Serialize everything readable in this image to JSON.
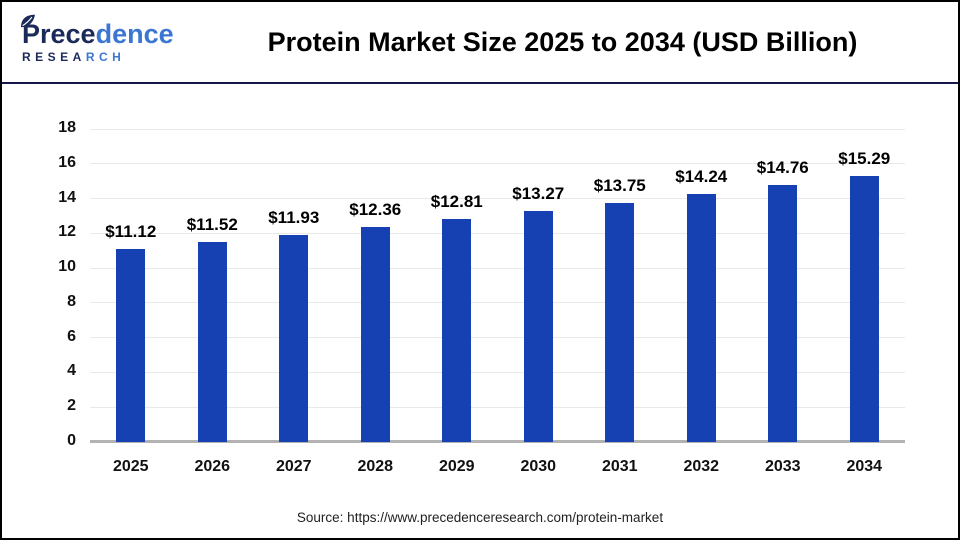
{
  "header": {
    "logo": {
      "name_dark": "Prece",
      "name_light": "dence",
      "sub_dark": "RESEA",
      "sub_light": "RCH"
    },
    "title": "Protein Market Size 2025 to 2034 (USD Billion)"
  },
  "chart_data": {
    "type": "bar",
    "title": "Protein Market Size 2025 to 2034 (USD Billion)",
    "categories": [
      "2025",
      "2026",
      "2027",
      "2028",
      "2029",
      "2030",
      "2031",
      "2032",
      "2033",
      "2034"
    ],
    "values": [
      11.12,
      11.52,
      11.93,
      12.36,
      12.81,
      13.27,
      13.75,
      14.24,
      14.76,
      15.29
    ],
    "value_labels": [
      "$11.12",
      "$11.52",
      "$11.93",
      "$12.36",
      "$12.81",
      "$13.27",
      "$13.75",
      "$14.24",
      "$14.76",
      "$15.29"
    ],
    "unit": "USD Billion",
    "xlabel": "",
    "ylabel": "",
    "ylim": [
      0,
      18
    ],
    "yticks": [
      0,
      2,
      4,
      6,
      8,
      10,
      12,
      14,
      16,
      18
    ],
    "grid": true,
    "legend_position": "none",
    "bar_color": "#1541b2"
  },
  "footer": {
    "source": "Source: https://www.precedenceresearch.com/protein-market"
  },
  "colors": {
    "bar": "#1541b2",
    "header_rule": "#16164a",
    "gridline": "#e9e9e9",
    "axis_line": "#b3b3b3",
    "logo_dark": "#1c2a59",
    "logo_light": "#3b77d2"
  }
}
